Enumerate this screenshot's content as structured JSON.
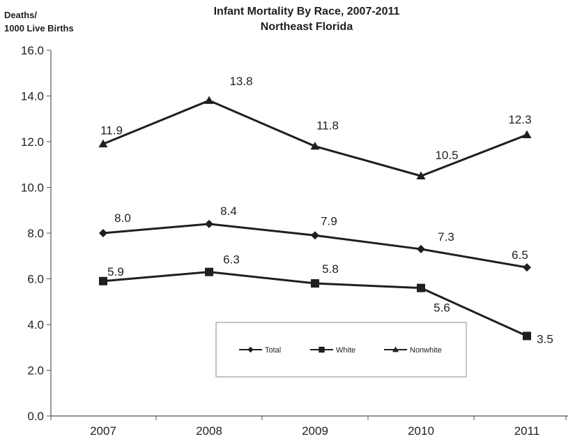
{
  "chart_data": {
    "type": "line",
    "title": "Infant Mortality By Race, 2007-2011",
    "subtitle": "Northeast Florida",
    "ylabel_lines": [
      "Deaths/",
      "1000 Live Births"
    ],
    "xlabel": "",
    "categories": [
      "2007",
      "2008",
      "2009",
      "2010",
      "2011"
    ],
    "ylim": [
      0,
      16
    ],
    "yticks": [
      "0.0",
      "2.0",
      "4.0",
      "6.0",
      "8.0",
      "10.0",
      "12.0",
      "14.0",
      "16.0"
    ],
    "grid": false,
    "legend_position": "bottom-center",
    "line_color": "#1f1f1f",
    "series": [
      {
        "name": "Total",
        "marker": "diamond",
        "values": [
          8.0,
          8.4,
          7.9,
          7.3,
          6.5
        ],
        "labels": [
          "8.0",
          "8.4",
          "7.9",
          "7.3",
          "6.5"
        ]
      },
      {
        "name": "White",
        "marker": "square",
        "values": [
          5.9,
          6.3,
          5.8,
          5.6,
          3.5
        ],
        "labels": [
          "5.9",
          "6.3",
          "5.8",
          "5.6",
          "3.5"
        ]
      },
      {
        "name": "Nonwhite",
        "marker": "triangle",
        "values": [
          11.9,
          13.8,
          11.8,
          10.5,
          12.3
        ],
        "labels": [
          "11.9",
          "13.8",
          "11.8",
          "10.5",
          "12.3"
        ]
      }
    ]
  }
}
